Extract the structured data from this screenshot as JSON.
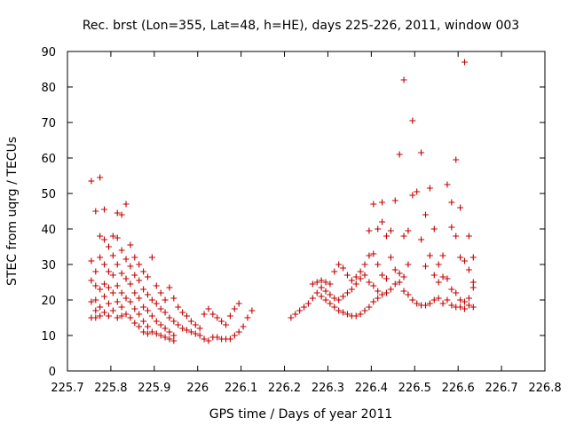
{
  "chart_data": {
    "type": "scatter",
    "title": "Rec. brst (Lon=355, Lat=48, h=HE), days 225-226, 2011, window 003",
    "xlabel": "GPS time / Days of year 2011",
    "ylabel": "STEC from uqrg / TECUs",
    "xlim": [
      225.7,
      226.8
    ],
    "ylim": [
      0,
      90
    ],
    "xticks": [
      "225.7",
      "225.8",
      "225.9",
      "226",
      "226.1",
      "226.2",
      "226.3",
      "226.4",
      "226.5",
      "226.6",
      "226.7",
      "226.8"
    ],
    "yticks": [
      "0",
      "10",
      "20",
      "30",
      "40",
      "50",
      "60",
      "70",
      "80",
      "90"
    ],
    "grid": false,
    "marker": "+",
    "color": "#c00000",
    "points": [
      [
        225.755,
        53.5
      ],
      [
        225.755,
        31.0
      ],
      [
        225.755,
        25.5
      ],
      [
        225.755,
        19.5
      ],
      [
        225.755,
        15.0
      ],
      [
        225.765,
        45.0
      ],
      [
        225.765,
        28.0
      ],
      [
        225.765,
        24.0
      ],
      [
        225.765,
        20.0
      ],
      [
        225.765,
        17.0
      ],
      [
        225.765,
        15.0
      ],
      [
        225.775,
        54.5
      ],
      [
        225.775,
        38.0
      ],
      [
        225.775,
        32.0
      ],
      [
        225.775,
        23.0
      ],
      [
        225.775,
        18.0
      ],
      [
        225.775,
        15.5
      ],
      [
        225.785,
        45.5
      ],
      [
        225.785,
        37.0
      ],
      [
        225.785,
        30.0
      ],
      [
        225.785,
        24.5
      ],
      [
        225.785,
        21.0
      ],
      [
        225.785,
        16.5
      ],
      [
        225.795,
        35.0
      ],
      [
        225.795,
        28.0
      ],
      [
        225.795,
        23.5
      ],
      [
        225.795,
        19.0
      ],
      [
        225.795,
        15.5
      ],
      [
        225.805,
        38.0
      ],
      [
        225.805,
        32.5
      ],
      [
        225.805,
        27.0
      ],
      [
        225.805,
        22.0
      ],
      [
        225.805,
        17.0
      ],
      [
        225.815,
        44.5
      ],
      [
        225.815,
        37.5
      ],
      [
        225.815,
        30.0
      ],
      [
        225.815,
        24.0
      ],
      [
        225.815,
        19.5
      ],
      [
        225.815,
        15.0
      ],
      [
        225.825,
        44.0
      ],
      [
        225.825,
        34.0
      ],
      [
        225.825,
        27.5
      ],
      [
        225.825,
        22.0
      ],
      [
        225.825,
        18.0
      ],
      [
        225.825,
        15.5
      ],
      [
        225.835,
        47.0
      ],
      [
        225.835,
        31.5
      ],
      [
        225.835,
        26.0
      ],
      [
        225.835,
        20.5
      ],
      [
        225.835,
        16.0
      ],
      [
        225.845,
        35.5
      ],
      [
        225.845,
        29.5
      ],
      [
        225.845,
        24.5
      ],
      [
        225.845,
        19.5
      ],
      [
        225.845,
        15.0
      ],
      [
        225.855,
        32.0
      ],
      [
        225.855,
        27.0
      ],
      [
        225.855,
        22.0
      ],
      [
        225.855,
        17.5
      ],
      [
        225.855,
        13.5
      ],
      [
        225.865,
        30.0
      ],
      [
        225.865,
        25.5
      ],
      [
        225.865,
        20.5
      ],
      [
        225.865,
        16.0
      ],
      [
        225.865,
        12.5
      ],
      [
        225.875,
        28.0
      ],
      [
        225.875,
        23.0
      ],
      [
        225.875,
        18.0
      ],
      [
        225.875,
        14.0
      ],
      [
        225.875,
        11.0
      ],
      [
        225.885,
        26.5
      ],
      [
        225.885,
        21.5
      ],
      [
        225.885,
        17.0
      ],
      [
        225.885,
        12.5
      ],
      [
        225.885,
        10.5
      ],
      [
        225.895,
        32.0
      ],
      [
        225.895,
        20.0
      ],
      [
        225.895,
        15.5
      ],
      [
        225.895,
        11.0
      ],
      [
        225.905,
        24.0
      ],
      [
        225.905,
        19.0
      ],
      [
        225.905,
        14.0
      ],
      [
        225.905,
        10.5
      ],
      [
        225.915,
        22.0
      ],
      [
        225.915,
        17.5
      ],
      [
        225.915,
        13.0
      ],
      [
        225.915,
        10.0
      ],
      [
        225.925,
        20.0
      ],
      [
        225.925,
        16.5
      ],
      [
        225.925,
        12.0
      ],
      [
        225.925,
        9.5
      ],
      [
        225.935,
        23.5
      ],
      [
        225.935,
        15.0
      ],
      [
        225.935,
        11.0
      ],
      [
        225.935,
        9.0
      ],
      [
        225.945,
        20.5
      ],
      [
        225.945,
        14.0
      ],
      [
        225.945,
        10.0
      ],
      [
        225.945,
        8.5
      ],
      [
        225.955,
        18.0
      ],
      [
        225.955,
        13.0
      ],
      [
        225.965,
        16.5
      ],
      [
        225.965,
        12.0
      ],
      [
        225.975,
        15.5
      ],
      [
        225.975,
        11.5
      ],
      [
        225.985,
        14.0
      ],
      [
        225.985,
        11.0
      ],
      [
        225.995,
        13.0
      ],
      [
        225.995,
        10.5
      ],
      [
        226.005,
        12.0
      ],
      [
        226.005,
        10.0
      ],
      [
        226.015,
        16.0
      ],
      [
        226.015,
        9.0
      ],
      [
        226.025,
        17.5
      ],
      [
        226.025,
        8.5
      ],
      [
        226.035,
        16.0
      ],
      [
        226.035,
        9.5
      ],
      [
        226.045,
        15.0
      ],
      [
        226.045,
        9.5
      ],
      [
        226.055,
        14.0
      ],
      [
        226.055,
        9.0
      ],
      [
        226.065,
        13.0
      ],
      [
        226.065,
        9.0
      ],
      [
        226.075,
        15.5
      ],
      [
        226.075,
        9.0
      ],
      [
        226.085,
        17.5
      ],
      [
        226.085,
        10.0
      ],
      [
        226.095,
        19.0
      ],
      [
        226.095,
        11.0
      ],
      [
        226.105,
        12.5
      ],
      [
        226.115,
        15.0
      ],
      [
        226.125,
        17.0
      ],
      [
        226.215,
        15.0
      ],
      [
        226.225,
        16.0
      ],
      [
        226.235,
        17.0
      ],
      [
        226.245,
        18.0
      ],
      [
        226.255,
        19.0
      ],
      [
        226.265,
        24.5
      ],
      [
        226.265,
        20.5
      ],
      [
        226.275,
        25.0
      ],
      [
        226.275,
        22.0
      ],
      [
        226.285,
        25.5
      ],
      [
        226.285,
        23.5
      ],
      [
        226.285,
        21.0
      ],
      [
        226.295,
        25.0
      ],
      [
        226.295,
        22.5
      ],
      [
        226.295,
        20.0
      ],
      [
        226.305,
        24.5
      ],
      [
        226.305,
        21.5
      ],
      [
        226.305,
        19.0
      ],
      [
        226.315,
        28.0
      ],
      [
        226.315,
        20.5
      ],
      [
        226.315,
        18.0
      ],
      [
        226.325,
        30.0
      ],
      [
        226.325,
        20.0
      ],
      [
        226.325,
        17.0
      ],
      [
        226.335,
        29.0
      ],
      [
        226.335,
        21.0
      ],
      [
        226.335,
        16.5
      ],
      [
        226.345,
        27.0
      ],
      [
        226.345,
        22.0
      ],
      [
        226.345,
        16.0
      ],
      [
        226.355,
        25.5
      ],
      [
        226.355,
        23.0
      ],
      [
        226.355,
        15.5
      ],
      [
        226.365,
        26.5
      ],
      [
        226.365,
        24.5
      ],
      [
        226.365,
        15.5
      ],
      [
        226.375,
        28.0
      ],
      [
        226.375,
        26.0
      ],
      [
        226.375,
        16.0
      ],
      [
        226.385,
        30.0
      ],
      [
        226.385,
        27.0
      ],
      [
        226.385,
        17.0
      ],
      [
        226.395,
        39.5
      ],
      [
        226.395,
        32.5
      ],
      [
        226.395,
        25.0
      ],
      [
        226.395,
        18.0
      ],
      [
        226.405,
        47.0
      ],
      [
        226.405,
        33.0
      ],
      [
        226.405,
        24.0
      ],
      [
        226.405,
        19.5
      ],
      [
        226.415,
        40.0
      ],
      [
        226.415,
        30.0
      ],
      [
        226.415,
        22.5
      ],
      [
        226.415,
        20.5
      ],
      [
        226.425,
        47.5
      ],
      [
        226.425,
        42.0
      ],
      [
        226.425,
        27.0
      ],
      [
        226.425,
        21.5
      ],
      [
        226.435,
        38.0
      ],
      [
        226.435,
        26.0
      ],
      [
        226.435,
        22.0
      ],
      [
        226.445,
        39.5
      ],
      [
        226.445,
        32.0
      ],
      [
        226.445,
        23.0
      ],
      [
        226.455,
        48.0
      ],
      [
        226.455,
        28.5
      ],
      [
        226.455,
        24.5
      ],
      [
        226.465,
        61.0
      ],
      [
        226.465,
        27.5
      ],
      [
        226.465,
        25.0
      ],
      [
        226.475,
        82.0
      ],
      [
        226.475,
        38.0
      ],
      [
        226.475,
        26.5
      ],
      [
        226.475,
        22.5
      ],
      [
        226.485,
        39.5
      ],
      [
        226.485,
        30.0
      ],
      [
        226.485,
        21.5
      ],
      [
        226.495,
        70.5
      ],
      [
        226.495,
        49.5
      ],
      [
        226.495,
        20.0
      ],
      [
        226.505,
        50.5
      ],
      [
        226.505,
        19.0
      ],
      [
        226.515,
        61.5
      ],
      [
        226.515,
        37.0
      ],
      [
        226.515,
        18.5
      ],
      [
        226.525,
        44.0
      ],
      [
        226.525,
        29.5
      ],
      [
        226.525,
        18.5
      ],
      [
        226.535,
        51.5
      ],
      [
        226.535,
        32.5
      ],
      [
        226.535,
        19.0
      ],
      [
        226.545,
        40.0
      ],
      [
        226.545,
        27.0
      ],
      [
        226.545,
        20.0
      ],
      [
        226.555,
        30.0
      ],
      [
        226.555,
        25.0
      ],
      [
        226.555,
        20.5
      ],
      [
        226.565,
        32.5
      ],
      [
        226.565,
        26.5
      ],
      [
        226.565,
        19.0
      ],
      [
        226.575,
        52.5
      ],
      [
        226.575,
        26.0
      ],
      [
        226.575,
        20.0
      ],
      [
        226.585,
        47.5
      ],
      [
        226.585,
        40.5
      ],
      [
        226.585,
        23.0
      ],
      [
        226.585,
        18.5
      ],
      [
        226.595,
        59.5
      ],
      [
        226.595,
        38.0
      ],
      [
        226.595,
        22.0
      ],
      [
        226.595,
        18.0
      ],
      [
        226.605,
        46.0
      ],
      [
        226.605,
        32.0
      ],
      [
        226.605,
        20.0
      ],
      [
        226.605,
        18.0
      ],
      [
        226.615,
        87.0
      ],
      [
        226.615,
        31.0
      ],
      [
        226.615,
        19.5
      ],
      [
        226.615,
        17.5
      ],
      [
        226.625,
        38.0
      ],
      [
        226.625,
        28.5
      ],
      [
        226.625,
        20.5
      ],
      [
        226.625,
        18.5
      ],
      [
        226.635,
        32.0
      ],
      [
        226.635,
        25.0
      ],
      [
        226.635,
        23.5
      ],
      [
        226.635,
        18.0
      ]
    ]
  }
}
